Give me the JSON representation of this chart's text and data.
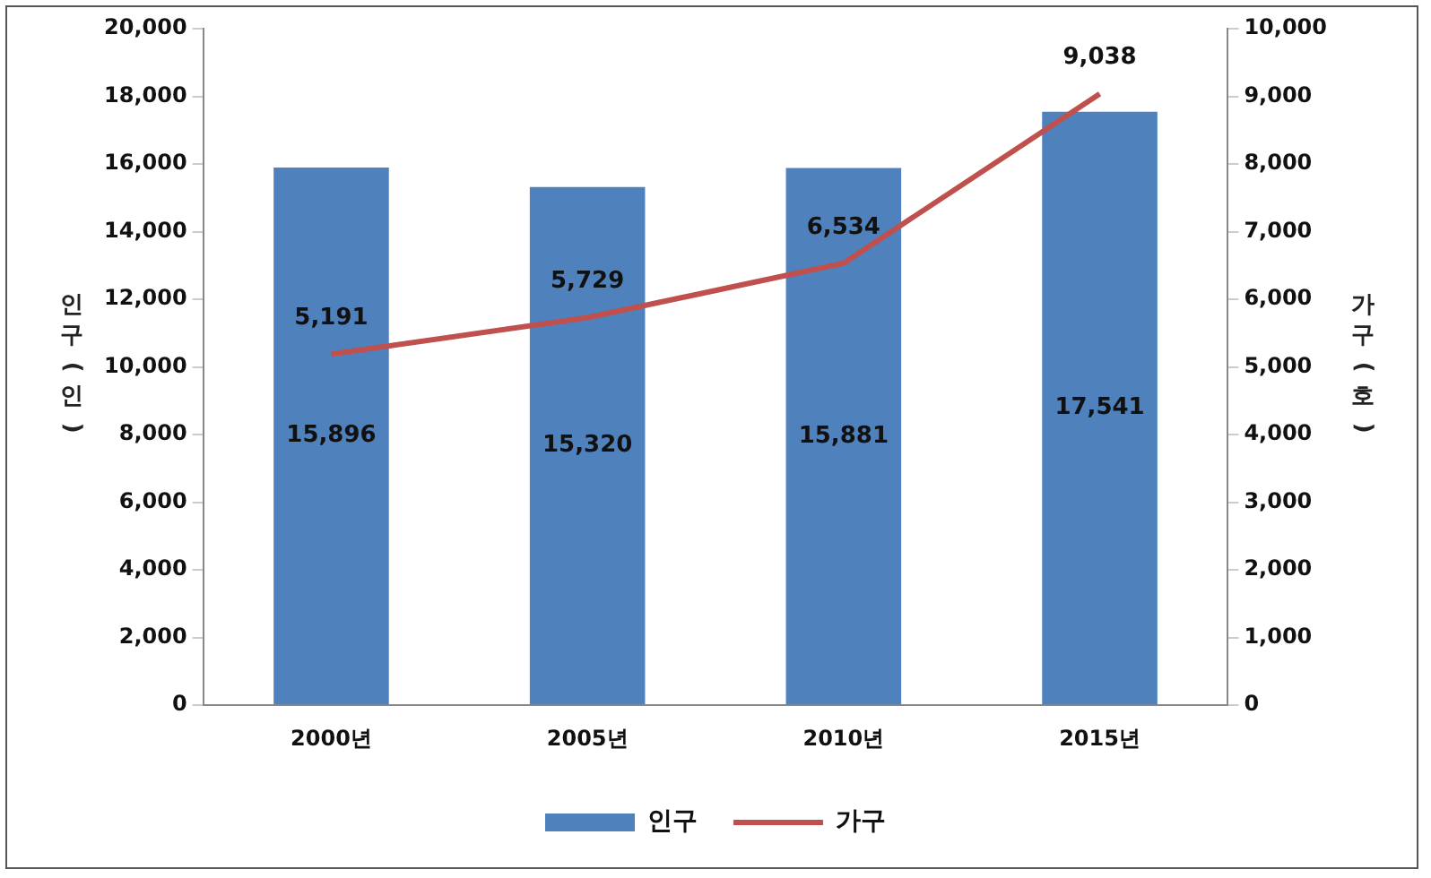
{
  "chart_data": {
    "type": "bar",
    "categories": [
      "2000년",
      "2005년",
      "2010년",
      "2015년"
    ],
    "ylabel": "인구(인)",
    "y2label": "가구(호)",
    "series": [
      {
        "name": "인구",
        "color": "#4f81bd",
        "values": [
          15896,
          15320,
          15881,
          17541
        ],
        "value_labels": [
          "15,896",
          "15,320",
          "15,881",
          "17,541"
        ]
      },
      {
        "name": "가구",
        "type": "line",
        "axis": "y2",
        "color": "#c0504d",
        "values": [
          5191,
          5729,
          6534,
          9038
        ],
        "value_labels": [
          "5,191",
          "5,729",
          "6,534",
          "9,038"
        ]
      }
    ],
    "ylim": [
      0,
      20000
    ],
    "yticks": [
      0,
      {
        "value": 2000,
        "label": "2,000"
      },
      {
        "value": 4000,
        "label": "4,000"
      },
      {
        "value": 6000,
        "label": "6,000"
      },
      {
        "value": 8000,
        "label": "8,000"
      },
      {
        "value": 10000,
        "label": "10,000"
      },
      {
        "value": 12000,
        "label": "12,000"
      },
      {
        "value": 14000,
        "label": "14,000"
      },
      {
        "value": 16000,
        "label": "16,000"
      },
      {
        "value": 18000,
        "label": "18,000"
      },
      {
        "value": 20000,
        "label": "20,000"
      }
    ],
    "y2lim": [
      0,
      10000
    ],
    "y2ticks": [
      0,
      {
        "value": 1000,
        "label": "1,000"
      },
      {
        "value": 2000,
        "label": "2,000"
      },
      {
        "value": 3000,
        "label": "3,000"
      },
      {
        "value": 4000,
        "label": "4,000"
      },
      {
        "value": 5000,
        "label": "5,000"
      },
      {
        "value": 6000,
        "label": "6,000"
      },
      {
        "value": 7000,
        "label": "7,000"
      },
      {
        "value": 8000,
        "label": "8,000"
      },
      {
        "value": 9000,
        "label": "9,000"
      },
      {
        "value": 10000,
        "label": "10,000"
      }
    ],
    "grid": false,
    "legend": "bottom",
    "marker": "none"
  }
}
